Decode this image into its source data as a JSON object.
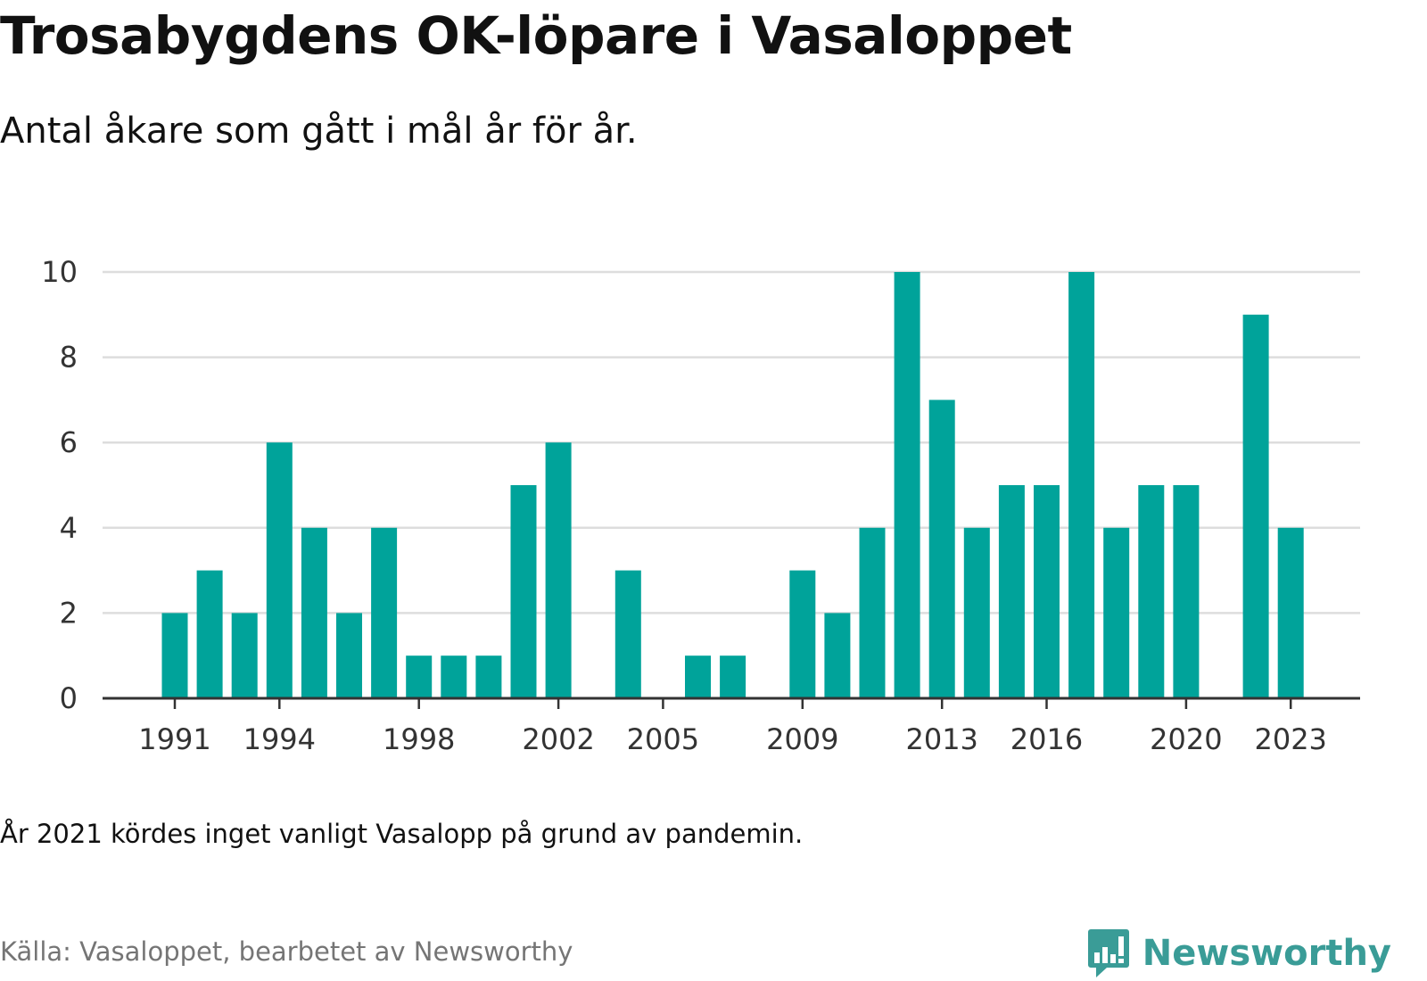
{
  "title": "Trosabygdens OK-löpare i Vasaloppet",
  "subtitle": "Antal åkare som gått i mål år för år.",
  "note": "År 2021 kördes inget vanligt Vasalopp på grund av pandemin.",
  "source": "Källa: Vasaloppet, bearbetet av Newsworthy",
  "brand": {
    "name": "Newsworthy",
    "icon": "newsworthy-logo-icon",
    "color": "#3a9c97"
  },
  "colors": {
    "bar": "#00a39a",
    "grid": "#dddddd",
    "axis": "#333333"
  },
  "chart_data": {
    "type": "bar",
    "x": [
      1991,
      1992,
      1993,
      1994,
      1995,
      1996,
      1997,
      1998,
      1999,
      2000,
      2001,
      2002,
      2003,
      2004,
      2005,
      2006,
      2007,
      2008,
      2009,
      2010,
      2011,
      2012,
      2013,
      2014,
      2015,
      2016,
      2017,
      2018,
      2019,
      2020,
      2021,
      2022,
      2023
    ],
    "values": [
      2,
      3,
      2,
      6,
      4,
      2,
      4,
      1,
      1,
      1,
      5,
      6,
      0,
      3,
      0,
      1,
      1,
      0,
      3,
      2,
      4,
      10,
      7,
      4,
      5,
      5,
      10,
      4,
      5,
      5,
      0,
      9,
      4
    ],
    "xticks": [
      1991,
      1994,
      1998,
      2002,
      2005,
      2009,
      2013,
      2016,
      2020,
      2023
    ],
    "yticks": [
      0,
      2,
      4,
      6,
      8,
      10
    ],
    "ylim": [
      0,
      10
    ],
    "xlabel": "",
    "ylabel": "",
    "grid": true,
    "legend": "none"
  }
}
